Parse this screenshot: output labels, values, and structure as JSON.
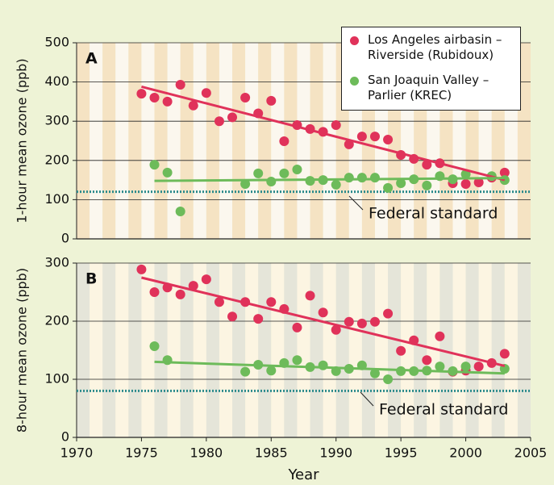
{
  "chart_data": [
    {
      "type": "scatter",
      "panel_label": "A",
      "ylabel": "1-hour mean ozone (ppb)",
      "xlim": [
        1970,
        2005
      ],
      "ylim": [
        0,
        500
      ],
      "yticks": [
        0,
        100,
        200,
        300,
        400,
        500
      ],
      "grid": true,
      "legend": "upper right",
      "reference_line": {
        "value": 120,
        "label": "Federal standard",
        "color": "#2b8a8c"
      },
      "series": [
        {
          "name": "Los Angeles airbasin – Riverside (Rubidoux)",
          "color": "#e0325a",
          "x": [
            1975,
            1976,
            1977,
            1978,
            1979,
            1980,
            1981,
            1982,
            1983,
            1984,
            1985,
            1986,
            1987,
            1988,
            1989,
            1990,
            1991,
            1992,
            1993,
            1994,
            1995,
            1996,
            1997,
            1998,
            1999,
            2000,
            2001,
            2002,
            2003
          ],
          "values": [
            370,
            360,
            350,
            393,
            340,
            372,
            300,
            310,
            360,
            320,
            352,
            249,
            290,
            280,
            273,
            290,
            241,
            261,
            261,
            253,
            214,
            204,
            189,
            193,
            142,
            140,
            144,
            156,
            169
          ],
          "trend": {
            "x": [
              1975,
              2003
            ],
            "values": [
              388,
              150
            ]
          }
        },
        {
          "name": "San Joaquin Valley – Parlier (KREC)",
          "color": "#6dbb5a",
          "x": [
            1976,
            1977,
            1978,
            1983,
            1984,
            1985,
            1986,
            1987,
            1988,
            1989,
            1990,
            1991,
            1992,
            1993,
            1994,
            1995,
            1996,
            1997,
            1998,
            1999,
            2000,
            2002,
            2003
          ],
          "values": [
            189,
            169,
            70,
            140,
            167,
            146,
            167,
            177,
            148,
            150,
            138,
            156,
            156,
            156,
            130,
            142,
            152,
            136,
            160,
            152,
            165,
            160,
            150
          ],
          "trend": {
            "x": [
              1976,
              2003
            ],
            "values": [
              148,
              155
            ]
          }
        }
      ]
    },
    {
      "type": "scatter",
      "panel_label": "B",
      "ylabel": "8-hour mean ozone (ppb)",
      "xlabel": "Year",
      "xlim": [
        1970,
        2005
      ],
      "xticks": [
        1970,
        1975,
        1980,
        1985,
        1990,
        1995,
        2000,
        2005
      ],
      "ylim": [
        0,
        300
      ],
      "yticks": [
        0,
        100,
        200,
        300
      ],
      "grid": true,
      "reference_line": {
        "value": 80,
        "label": "Federal standard",
        "color": "#2b8a8c"
      },
      "series": [
        {
          "color": "#e0325a",
          "x": [
            1975,
            1976,
            1977,
            1978,
            1979,
            1980,
            1981,
            1982,
            1983,
            1984,
            1985,
            1986,
            1987,
            1988,
            1989,
            1990,
            1991,
            1992,
            1993,
            1994,
            1995,
            1996,
            1997,
            1998,
            1999,
            2000,
            2001,
            2002,
            2003
          ],
          "values": [
            289,
            250,
            258,
            246,
            261,
            272,
            233,
            208,
            233,
            204,
            233,
            221,
            189,
            244,
            215,
            185,
            199,
            196,
            199,
            213,
            149,
            167,
            133,
            174,
            113,
            115,
            122,
            128,
            144
          ],
          "trend": {
            "x": [
              1975,
              2003
            ],
            "values": [
              275,
              123
            ]
          }
        },
        {
          "color": "#6dbb5a",
          "x": [
            1976,
            1977,
            1983,
            1984,
            1985,
            1986,
            1987,
            1988,
            1989,
            1990,
            1991,
            1992,
            1993,
            1994,
            1995,
            1996,
            1997,
            1998,
            1999,
            2000,
            2003
          ],
          "values": [
            157,
            133,
            113,
            125,
            115,
            128,
            133,
            121,
            124,
            114,
            118,
            124,
            110,
            100,
            114,
            114,
            115,
            122,
            114,
            122,
            118
          ],
          "trend": {
            "x": [
              1976,
              2003
            ],
            "values": [
              130,
              110
            ]
          }
        }
      ]
    }
  ]
}
